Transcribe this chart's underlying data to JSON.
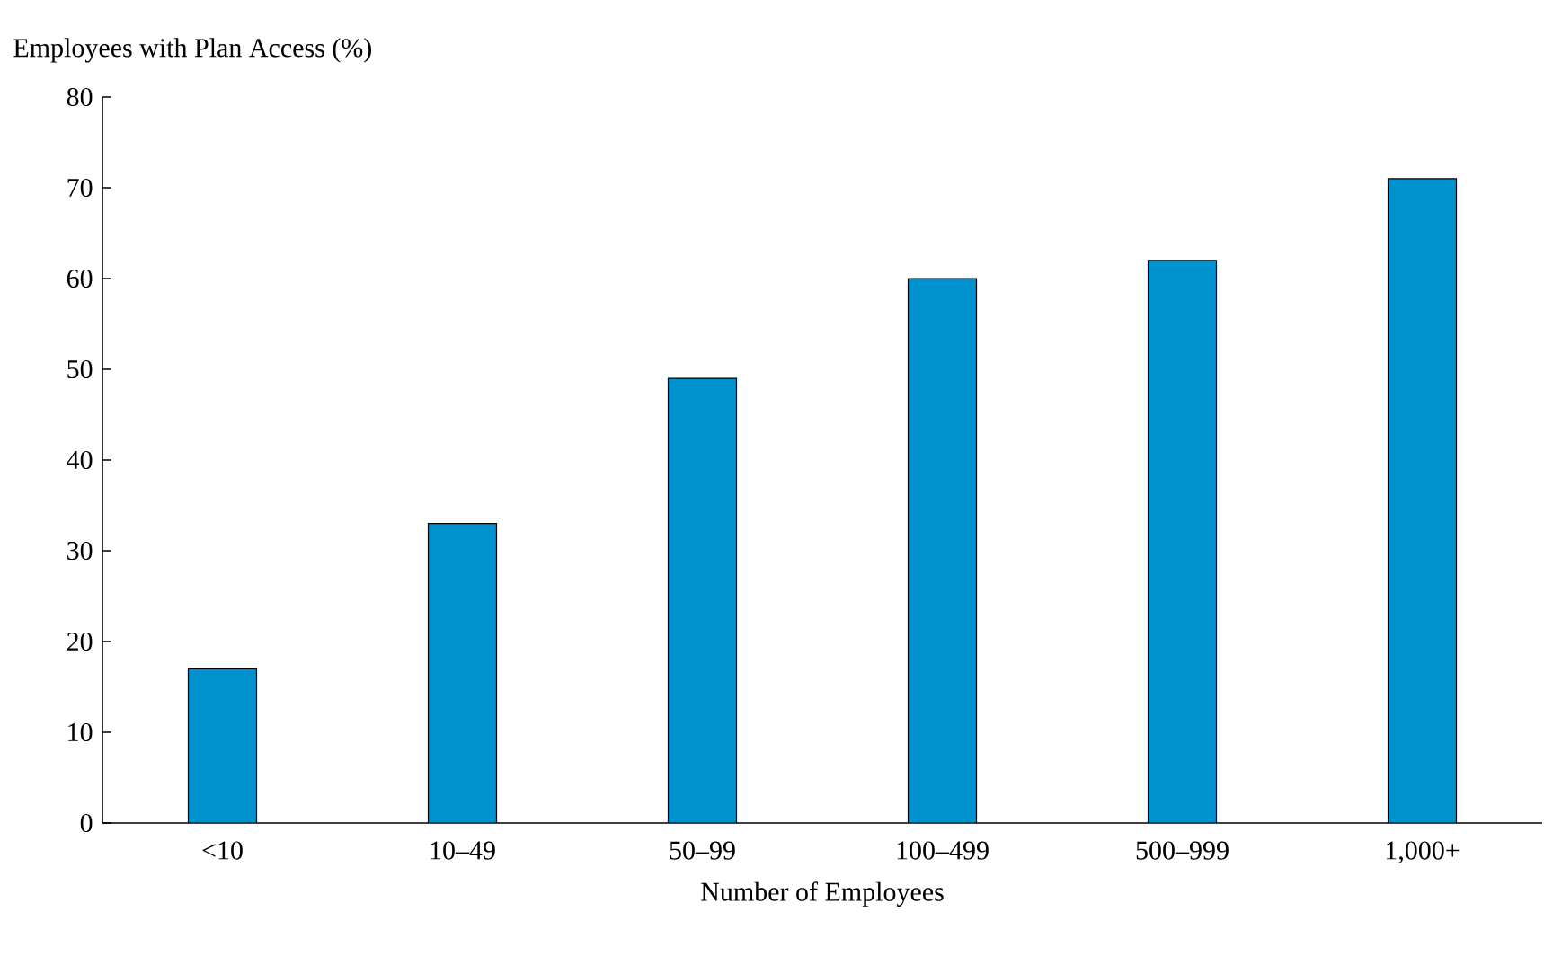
{
  "chart_data": {
    "type": "bar",
    "xlabel": "Number of Employees",
    "ylabel": "Employees with Plan Access (%)",
    "categories": [
      "<10",
      "10–49",
      "50–99",
      "100–499",
      "500–999",
      "1,000+"
    ],
    "values": [
      17,
      33,
      49,
      60,
      62,
      71
    ],
    "color": "#0091cf",
    "ylim": [
      0,
      80
    ],
    "yticks": [
      0,
      10,
      20,
      30,
      40,
      50,
      60,
      70,
      80
    ]
  }
}
